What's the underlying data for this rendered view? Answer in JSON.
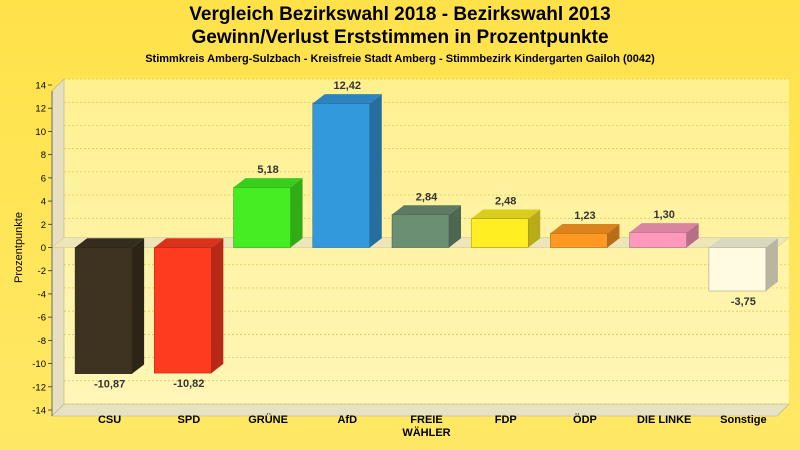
{
  "chart_data": {
    "type": "bar",
    "title": "Vergleich Bezirkswahl 2018 - Bezirkswahl 2013",
    "subtitle": "Gewinn/Verlust Erststimmen in Prozentpunkte",
    "caption": "Stimmkreis Amberg-Sulzbach - Kreisfreie Stadt Amberg - Stimmbezirk Kindergarten Gailoh (0042)",
    "ylabel": "Prozentpunkte",
    "xlabel": "",
    "ylim": [
      -14,
      14
    ],
    "yticks": [
      14,
      12,
      10,
      8,
      6,
      4,
      2,
      0,
      -2,
      -4,
      -6,
      -8,
      -10,
      -12,
      -14
    ],
    "grid": true,
    "categories": [
      [
        "CSU"
      ],
      [
        "SPD"
      ],
      [
        "GRÜNE"
      ],
      [
        "AfD"
      ],
      [
        "FREIE",
        "WÄHLER"
      ],
      [
        "FDP"
      ],
      [
        "ÖDP"
      ],
      [
        "DIE LINKE"
      ],
      [
        "Sonstige"
      ]
    ],
    "values": [
      -10.87,
      -10.82,
      5.18,
      12.42,
      2.84,
      2.48,
      1.23,
      1.3,
      -3.75
    ],
    "value_labels": [
      "-10,87",
      "-10,82",
      "5,18",
      "12,42",
      "2,84",
      "2,48",
      "1,23",
      "1,30",
      "-3,75"
    ],
    "colors": [
      "#3d3320",
      "#ff3b1f",
      "#44ee22",
      "#3399dd",
      "#6b8f72",
      "#ffee22",
      "#ff9922",
      "#ff99bb",
      "#fffbe0"
    ]
  }
}
